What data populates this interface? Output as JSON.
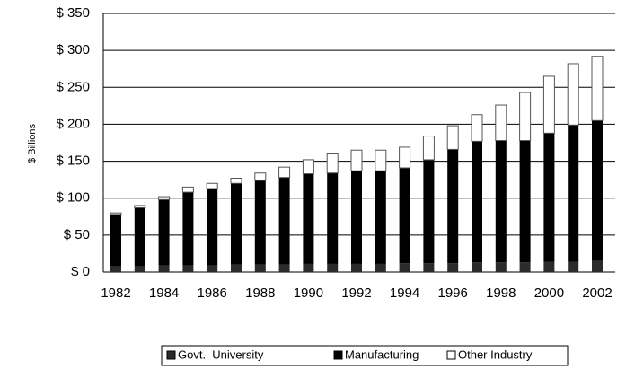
{
  "chart_data": {
    "type": "stacked_bar",
    "y_axis_label": "$ Billions",
    "categories": [
      "1982",
      null,
      "1984",
      null,
      "1986",
      null,
      "1988",
      null,
      "1990",
      null,
      "1992",
      null,
      "1994",
      null,
      "1996",
      null,
      "1998",
      null,
      "2000",
      null,
      "2002"
    ],
    "series": [
      {
        "name": "Govt.  University",
        "color": "#2b2b2b",
        "values": [
          8,
          8,
          9,
          9,
          9,
          10,
          10,
          10,
          11,
          11,
          11,
          11,
          12,
          12,
          12,
          13,
          13,
          13,
          14,
          14,
          15
        ]
      },
      {
        "name": "Manufacturing",
        "color": "#000000",
        "values": [
          70,
          79,
          89,
          99,
          104,
          110,
          114,
          118,
          122,
          123,
          126,
          126,
          129,
          140,
          154,
          164,
          165,
          165,
          174,
          185,
          190
        ]
      },
      {
        "name": "Other Industry",
        "color": "#ffffff",
        "values": [
          2,
          3,
          4,
          7,
          7,
          7,
          10,
          14,
          19,
          27,
          28,
          28,
          28,
          32,
          32,
          36,
          48,
          65,
          77,
          83,
          87
        ]
      }
    ],
    "ylim": [
      0,
      350
    ],
    "yticks": [
      {
        "value": 0,
        "label": "$  0"
      },
      {
        "value": 50,
        "label": "$ 50"
      },
      {
        "value": 100,
        "label": "$ 100"
      },
      {
        "value": 150,
        "label": "$ 150"
      },
      {
        "value": 200,
        "label": "$ 200"
      },
      {
        "value": 250,
        "label": "$ 250"
      },
      {
        "value": 300,
        "label": "$ 300"
      },
      {
        "value": 350,
        "label": "$ 350"
      }
    ],
    "grid": true,
    "legend": "bottom"
  }
}
